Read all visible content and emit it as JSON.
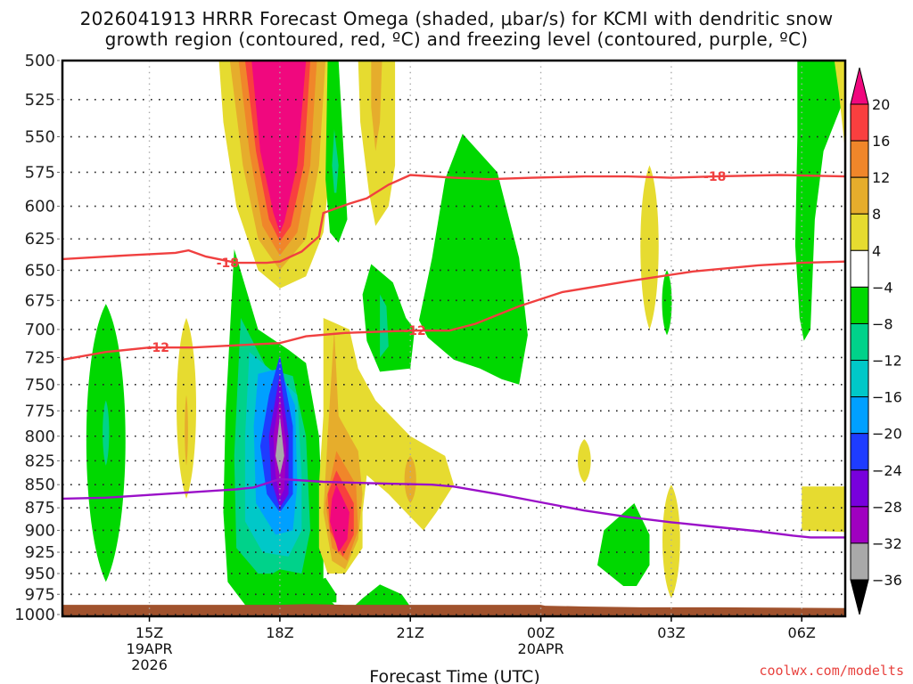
{
  "chart_data": {
    "type": "heatmap",
    "title_line1": "2026041913 HRRR Forecast Omega (shaded, μbar/s) for KCMI with dendritic snow",
    "title_line2": "growth region (contoured, red, ºC) and freezing level (contoured, purple, ºC)",
    "xlabel": "Forecast Time (UTC)",
    "ylabel": "",
    "credit": "coolwx.com/modelts",
    "x_axis": {
      "unit": "hours since 2026-04-19 00Z",
      "range": [
        13.0,
        31.0
      ],
      "ticks": [
        {
          "value": 15,
          "label": "15Z",
          "sub1": "19APR",
          "sub2": "2026"
        },
        {
          "value": 18,
          "label": "18Z",
          "sub1": "",
          "sub2": ""
        },
        {
          "value": 21,
          "label": "21Z",
          "sub1": "",
          "sub2": ""
        },
        {
          "value": 24,
          "label": "00Z",
          "sub1": "20APR",
          "sub2": ""
        },
        {
          "value": 27,
          "label": "03Z",
          "sub1": "",
          "sub2": ""
        },
        {
          "value": 30,
          "label": "06Z",
          "sub1": "",
          "sub2": ""
        }
      ]
    },
    "y_axis": {
      "unit": "hPa",
      "range": [
        500,
        1000
      ],
      "inverted": true,
      "ticks": [
        "500",
        "525",
        "550",
        "575",
        "600",
        "625",
        "650",
        "675",
        "700",
        "725",
        "750",
        "775",
        "800",
        "825",
        "850",
        "875",
        "900",
        "925",
        "950",
        "975",
        "1000"
      ]
    },
    "grid": true,
    "colorbar": {
      "placement": "right",
      "levels": [
        "20",
        "16",
        "12",
        "8",
        "4",
        "−4",
        "−8",
        "−12",
        "−16",
        "−20",
        "−24",
        "−28",
        "−32",
        "−36"
      ],
      "bins": [
        {
          "range": "> 20",
          "color": "#f0087e"
        },
        {
          "range": "16 to 20",
          "color": "#f93f3f"
        },
        {
          "range": "12 to 16",
          "color": "#f0862a"
        },
        {
          "range": "8 to 12",
          "color": "#e6ad2c"
        },
        {
          "range": "4 to 8",
          "color": "#e6db30"
        },
        {
          "range": "-4 to 4",
          "color": "#ffffff"
        },
        {
          "range": "-8 to -4",
          "color": "#00d800"
        },
        {
          "range": "-12 to -8",
          "color": "#00d28a"
        },
        {
          "range": "-16 to -12",
          "color": "#00c8c8"
        },
        {
          "range": "-20 to -16",
          "color": "#00a0ff"
        },
        {
          "range": "-24 to -20",
          "color": "#1e3cff"
        },
        {
          "range": "-28 to -24",
          "color": "#7800dc"
        },
        {
          "range": "-32 to -28",
          "color": "#a000c0"
        },
        {
          "range": "-36 to -32",
          "color": "#a9a9a9"
        },
        {
          "range": "< -36",
          "color": "#000000"
        }
      ]
    },
    "contours": {
      "dgz_minus12": {
        "label": "-12",
        "color": "#f04040",
        "points": [
          [
            13.0,
            727
          ],
          [
            14.0,
            720
          ],
          [
            15.0,
            716
          ],
          [
            16.0,
            716
          ],
          [
            17.0,
            714
          ],
          [
            18.0,
            712
          ],
          [
            18.6,
            706
          ],
          [
            19.5,
            703
          ],
          [
            21.0,
            701
          ],
          [
            21.9,
            701
          ],
          [
            22.5,
            695
          ],
          [
            23.5,
            680
          ],
          [
            24.5,
            668
          ],
          [
            26.0,
            659
          ],
          [
            27.5,
            651
          ],
          [
            29.0,
            646
          ],
          [
            30.0,
            644
          ],
          [
            31.0,
            643
          ]
        ]
      },
      "dgz_minus18": {
        "label": "-18",
        "color": "#f04040",
        "points": [
          [
            13.0,
            641
          ],
          [
            14.5,
            638
          ],
          [
            15.6,
            636
          ],
          [
            15.9,
            634
          ],
          [
            16.3,
            639
          ],
          [
            17.0,
            644
          ],
          [
            17.7,
            644
          ],
          [
            18.0,
            643
          ],
          [
            18.5,
            635
          ],
          [
            18.9,
            623
          ],
          [
            19.0,
            605
          ],
          [
            19.6,
            598
          ],
          [
            20.0,
            594
          ],
          [
            20.5,
            584
          ],
          [
            21.0,
            577
          ],
          [
            22.0,
            579
          ],
          [
            22.8,
            580
          ],
          [
            23.8,
            579
          ],
          [
            25.0,
            578
          ],
          [
            26.0,
            578
          ],
          [
            27.0,
            579
          ],
          [
            28.0,
            578
          ],
          [
            29.5,
            577
          ],
          [
            31.0,
            578
          ]
        ]
      },
      "freezing_level": {
        "color": "#9a10c8",
        "points": [
          [
            13.0,
            865
          ],
          [
            14.0,
            864
          ],
          [
            15.0,
            861
          ],
          [
            16.0,
            858
          ],
          [
            17.0,
            855
          ],
          [
            17.4,
            853
          ],
          [
            18.0,
            844
          ],
          [
            19.0,
            847
          ],
          [
            20.5,
            849
          ],
          [
            21.5,
            850
          ],
          [
            22.0,
            852
          ],
          [
            23.0,
            860
          ],
          [
            24.0,
            869
          ],
          [
            25.0,
            878
          ],
          [
            26.0,
            885
          ],
          [
            27.0,
            891
          ],
          [
            28.0,
            896
          ],
          [
            29.0,
            901
          ],
          [
            29.8,
            906
          ],
          [
            30.2,
            908
          ],
          [
            31.0,
            908
          ]
        ]
      }
    },
    "surface": {
      "color": "#a0522d",
      "pressure_hPa": 990
    },
    "omega_features": [
      {
        "desc": "strong ascent core",
        "time_h": 18.0,
        "pressure_hPa": 800,
        "min_omega": "< -32"
      },
      {
        "desc": "strong descent aloft",
        "time_h": 18.0,
        "pressure_hPa": 540,
        "max_omega": "> 20"
      },
      {
        "desc": "descent low-level",
        "time_h": 19.1,
        "pressure_hPa": 890,
        "max_omega": "> 20"
      }
    ]
  }
}
